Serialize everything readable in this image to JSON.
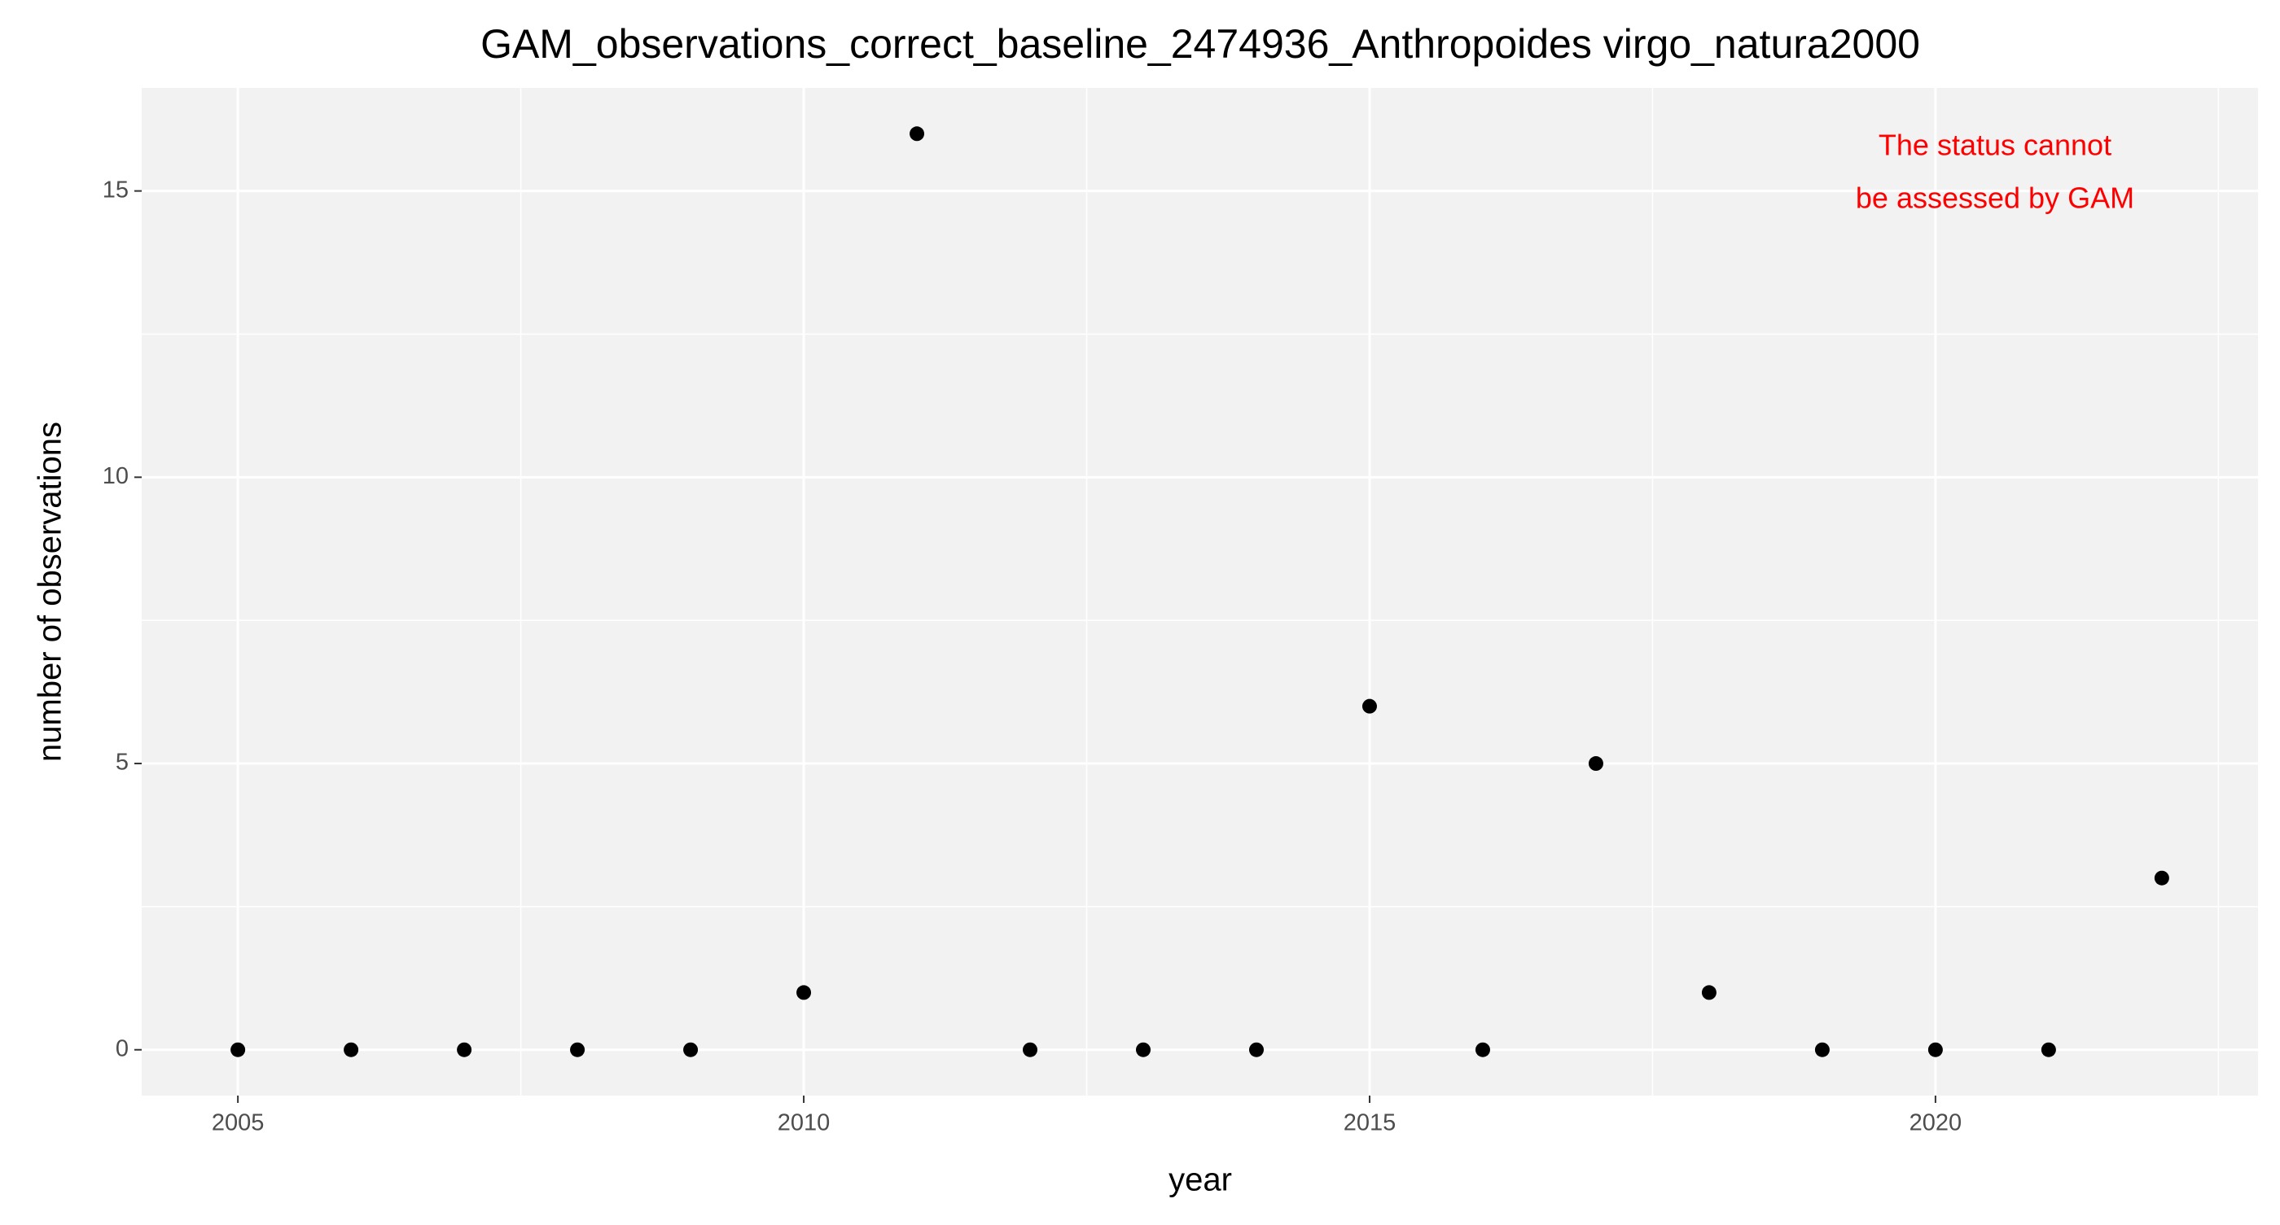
{
  "chart_data": {
    "type": "scatter",
    "title": "GAM_observations_correct_baseline_2474936_Anthropoides virgo_natura2000",
    "x_label": "year",
    "y_label": "number of observations",
    "annotation": [
      "The status cannot",
      "be assessed by GAM"
    ],
    "annotation_color": "#ff0000",
    "x": [
      2005,
      2006,
      2007,
      2008,
      2009,
      2010,
      2011,
      2012,
      2013,
      2014,
      2015,
      2016,
      2017,
      2018,
      2019,
      2020,
      2021,
      2022
    ],
    "values": [
      0,
      0,
      0,
      0,
      0,
      1,
      16,
      0,
      0,
      0,
      6,
      0,
      5,
      1,
      0,
      0,
      0,
      3
    ],
    "color": "#000000",
    "xlim": [
      2004.15,
      2022.85
    ],
    "xticks": [
      2005,
      2010,
      2015,
      2020
    ],
    "ylim": [
      -0.8,
      16.8
    ],
    "yticks": [
      0,
      5,
      10,
      15
    ],
    "grid": true
  }
}
